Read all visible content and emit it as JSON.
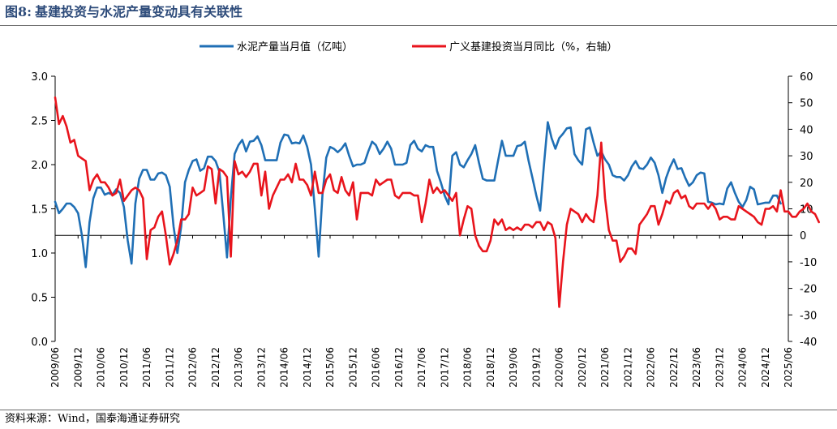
{
  "figure": {
    "number": "图8:",
    "title": "基建投资与水泥产量变动具有关联性",
    "source": "资料来源：Wind，国泰海通证券研究"
  },
  "chart_data": {
    "type": "line",
    "title": "基建投资与水泥产量变动具有关联性",
    "legend_position": "top-center",
    "grid": false,
    "x_tick_labels": [
      "2009/06",
      "2009/12",
      "2010/06",
      "2010/12",
      "2011/06",
      "2011/12",
      "2012/06",
      "2012/12",
      "2013/06",
      "2013/12",
      "2014/06",
      "2014/12",
      "2015/06",
      "2015/12",
      "2016/06",
      "2016/12",
      "2017/06",
      "2017/12",
      "2018/06",
      "2018/12",
      "2019/06",
      "2019/12",
      "2020/06",
      "2020/12",
      "2021/06",
      "2021/12",
      "2022/06",
      "2022/12",
      "2023/06",
      "2023/12",
      "2024/06",
      "2024/12",
      "2025/06"
    ],
    "x_range": [
      "2009/06",
      "2025/06"
    ],
    "y_left": {
      "range": [
        0.0,
        3.0
      ],
      "ticks": [
        "0.0",
        "0.5",
        "1.0",
        "1.5",
        "2.0",
        "2.5",
        "3.0"
      ]
    },
    "y_right": {
      "range": [
        -40,
        60
      ],
      "ticks": [
        "-40",
        "-30",
        "-20",
        "-10",
        "0",
        "10",
        "20",
        "30",
        "40",
        "50",
        "60"
      ]
    },
    "series": [
      {
        "name": "水泥产量当月值（亿吨）",
        "axis": "left",
        "color": "#1f6fb5",
        "values": [
          1.58,
          1.45,
          1.5,
          1.56,
          1.56,
          1.52,
          1.45,
          1.2,
          0.84,
          1.35,
          1.62,
          1.74,
          1.74,
          1.66,
          1.68,
          1.66,
          1.72,
          1.68,
          1.52,
          1.14,
          0.88,
          1.56,
          1.84,
          1.94,
          1.94,
          1.83,
          1.83,
          1.9,
          1.91,
          1.88,
          1.75,
          1.3,
          1.0,
          1.3,
          1.8,
          1.94,
          2.04,
          2.06,
          1.93,
          1.96,
          2.09,
          2.09,
          2.04,
          1.92,
          1.45,
          0.95,
          1.62,
          2.12,
          2.22,
          2.28,
          2.15,
          2.26,
          2.27,
          2.32,
          2.22,
          2.05,
          2.05,
          2.05,
          2.05,
          2.25,
          2.34,
          2.33,
          2.24,
          2.25,
          2.24,
          2.33,
          2.2,
          2.0,
          1.5,
          0.96,
          1.66,
          2.08,
          2.2,
          2.18,
          2.14,
          2.18,
          2.24,
          2.1,
          1.98,
          2.0,
          2.0,
          2.02,
          2.15,
          2.26,
          2.22,
          2.12,
          2.18,
          2.26,
          2.18,
          2.0,
          2.0,
          2.0,
          2.02,
          2.22,
          2.27,
          2.18,
          2.15,
          2.22,
          2.2,
          2.2,
          1.93,
          1.8,
          1.65,
          1.55,
          2.1,
          2.14,
          2.0,
          1.97,
          2.05,
          2.12,
          2.22,
          2.02,
          1.84,
          1.82,
          1.82,
          1.82,
          2.05,
          2.27,
          2.1,
          2.1,
          2.1,
          2.21,
          2.22,
          2.26,
          2.04,
          1.85,
          1.65,
          1.48,
          2.0,
          2.48,
          2.3,
          2.18,
          2.3,
          2.35,
          2.41,
          2.42,
          2.12,
          2.05,
          2.0,
          2.4,
          2.42,
          2.25,
          2.1,
          2.15,
          2.06,
          2.0,
          1.88,
          1.86,
          1.86,
          1.82,
          1.88,
          1.98,
          2.04,
          1.96,
          1.95,
          2.0,
          2.08,
          2.02,
          1.88,
          1.68,
          1.85,
          1.97,
          2.06,
          1.95,
          1.96,
          1.85,
          1.76,
          1.8,
          1.88,
          1.91,
          1.9,
          1.58,
          1.57,
          1.55,
          1.56,
          1.55,
          1.73,
          1.8,
          1.68,
          1.58,
          1.52,
          1.6,
          1.75,
          1.72,
          1.55,
          1.56,
          1.57,
          1.57,
          1.65,
          1.65,
          1.56
        ]
      },
      {
        "name": "广义基建投资当月同比（%，右轴）",
        "axis": "right",
        "color": "#e8141c",
        "values": [
          52,
          42,
          45,
          41,
          35,
          36,
          30,
          29,
          28,
          17,
          21,
          23,
          20,
          20,
          18,
          15,
          16,
          21,
          13,
          15,
          17,
          18,
          17,
          14,
          -9,
          2,
          3,
          7,
          9,
          0,
          -11,
          -7,
          -2,
          6,
          6,
          8,
          18,
          15,
          16,
          17,
          26,
          25,
          12,
          25,
          24,
          22,
          -8,
          28,
          23,
          24,
          22,
          24,
          27,
          27,
          15,
          24,
          10,
          15,
          18,
          21,
          21,
          23,
          20,
          27,
          21,
          21,
          19,
          15,
          24,
          16,
          16,
          21,
          23,
          17,
          16,
          22,
          17,
          15,
          20,
          6,
          16,
          16,
          16,
          15,
          21,
          19,
          20,
          21,
          21,
          15,
          14,
          16,
          16,
          16,
          15,
          15,
          5,
          12,
          21,
          16,
          18,
          16,
          17,
          15,
          13,
          16,
          0,
          6,
          11,
          10,
          0,
          -4,
          -6,
          -6,
          -2,
          6,
          4,
          6,
          2,
          3,
          2,
          3,
          2,
          4,
          4,
          3,
          5,
          5,
          2,
          5,
          4,
          -1,
          -27,
          -10,
          4,
          10,
          9,
          8,
          5,
          8,
          6,
          5,
          15,
          35,
          14,
          2,
          -2,
          -2,
          -10,
          -8,
          -5,
          -5,
          -7,
          4,
          6,
          8,
          11,
          11,
          4,
          8,
          13,
          12,
          16,
          17,
          14,
          15,
          11,
          10,
          12,
          12,
          12,
          10,
          12,
          10,
          6,
          7,
          7,
          6,
          6,
          11,
          10,
          9,
          8,
          7,
          5,
          4,
          10,
          10,
          11,
          9,
          17,
          9,
          9,
          7,
          7,
          9,
          10,
          12,
          9,
          8,
          5
        ]
      }
    ]
  }
}
